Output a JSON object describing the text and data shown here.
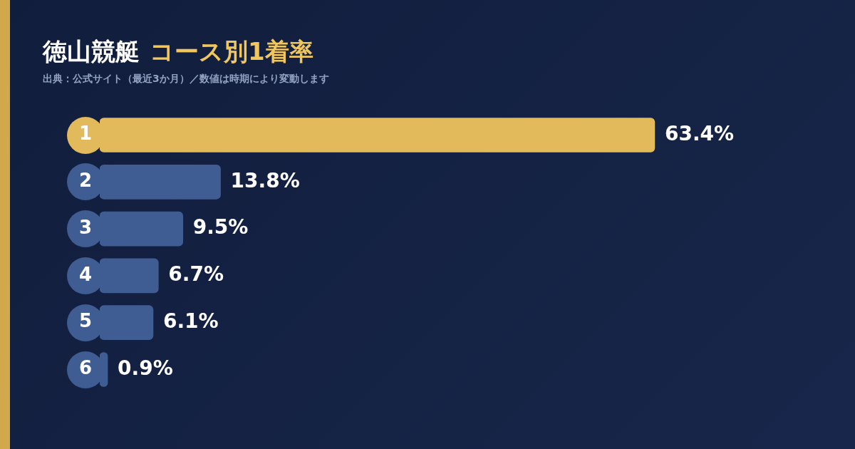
{
  "chart_data": {
    "type": "bar",
    "orientation": "horizontal",
    "title": "徳山競艇",
    "subtitle": "コース別1着率",
    "annotations": [
      "出典：公式サイト（最近3か月）／数値は時期により変動します"
    ],
    "categories": [
      "1",
      "2",
      "3",
      "4",
      "5",
      "6"
    ],
    "values": [
      63.4,
      13.8,
      9.5,
      6.7,
      6.1,
      0.9
    ],
    "value_labels": [
      "63.4%",
      "13.8%",
      "9.5%",
      "6.7%",
      "6.1%",
      "0.9%"
    ],
    "colors": [
      "#e2ba5c",
      "#3f5d93",
      "#3f5d93",
      "#3f5d93",
      "#3f5d93",
      "#3f5d93"
    ],
    "legend": false
  }
}
